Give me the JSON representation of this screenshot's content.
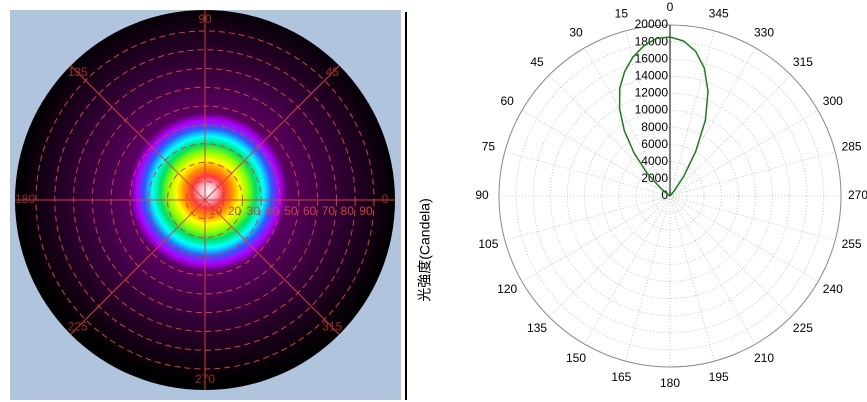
{
  "chart_data": [
    {
      "type": "polar-heatmap",
      "angle_ticks": [
        0,
        45,
        90,
        135,
        180,
        225,
        270,
        315
      ],
      "rticks": [
        10,
        20,
        30,
        40,
        50,
        60,
        70,
        80,
        90
      ],
      "rlim": [
        0,
        90
      ],
      "colors": [
        "#ffffff",
        "#ffb8c8",
        "#ff3a3a",
        "#ff8c00",
        "#ffff00",
        "#90ff00",
        "#00e060",
        "#00ffff",
        "#2a5cff",
        "#b000ff",
        "#5a0060",
        "#000000"
      ],
      "grid_color": "#d04040",
      "background": "#b0c4de"
    },
    {
      "type": "polar",
      "ylabel": "光強度(Candela)",
      "angle_ticks": [
        0,
        15,
        30,
        45,
        60,
        75,
        90,
        105,
        120,
        135,
        150,
        165,
        180,
        195,
        210,
        225,
        240,
        255,
        270,
        285,
        300,
        315,
        330,
        345
      ],
      "rticks": [
        0,
        2000,
        4000,
        6000,
        8000,
        10000,
        12000,
        14000,
        16000,
        18000,
        20000
      ],
      "rlim": [
        0,
        20000
      ],
      "grid": true,
      "color": "#1a7f1a",
      "x": [
        315,
        320,
        325,
        330,
        335,
        340,
        345,
        350,
        355,
        0,
        5,
        10,
        15,
        20,
        25,
        30,
        35,
        40,
        45,
        50,
        55,
        60
      ],
      "values": [
        0,
        700,
        2800,
        6000,
        9800,
        13000,
        15500,
        17200,
        18200,
        18600,
        18500,
        17800,
        16800,
        15500,
        13900,
        11800,
        9300,
        6500,
        3800,
        1500,
        300,
        0
      ]
    }
  ]
}
